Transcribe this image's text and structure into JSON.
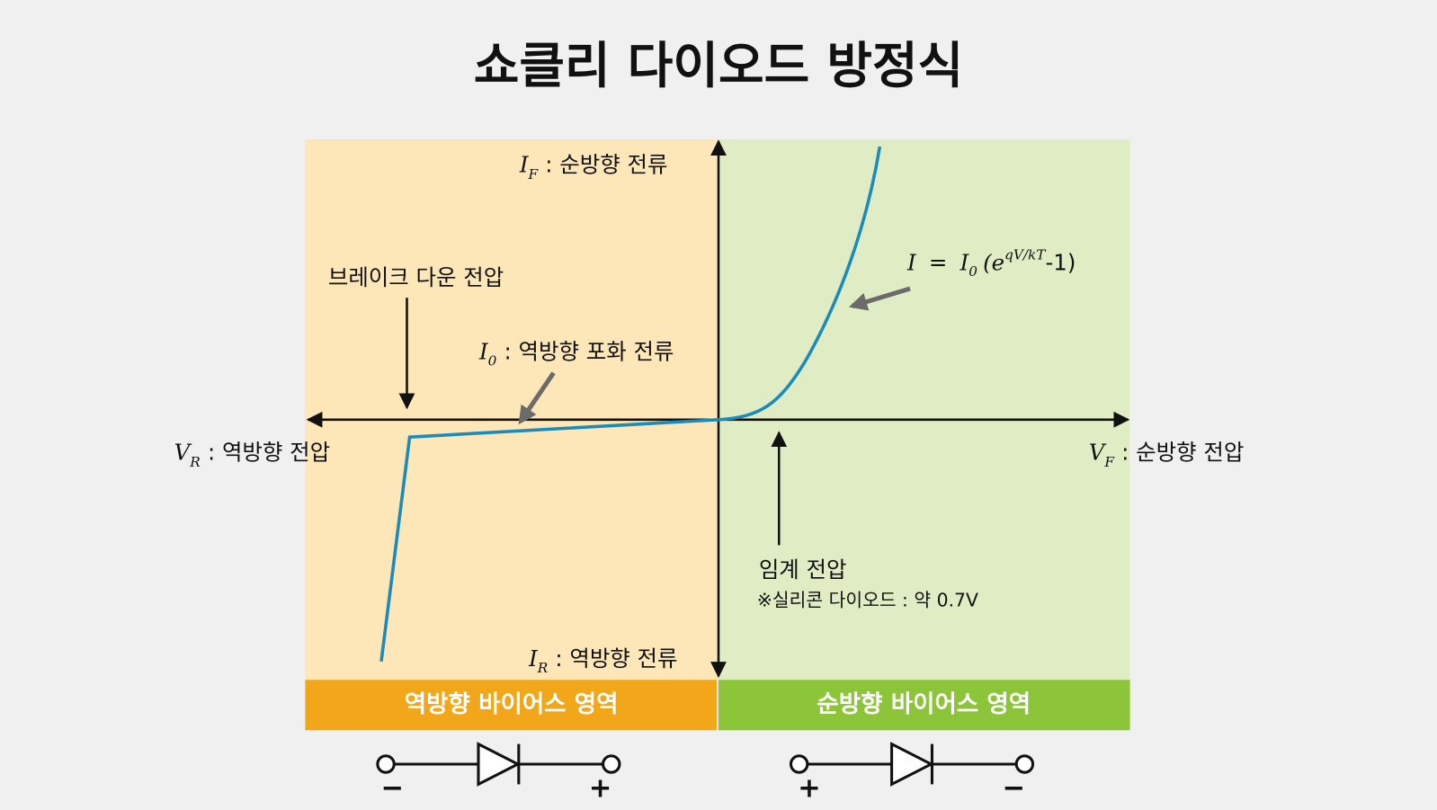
{
  "title": "쇼클리 다이오드 방정식",
  "labels": {
    "forward_current": {
      "symbol": "I",
      "subscript": "F",
      "text": ": 순방향 전류"
    },
    "reverse_current": {
      "symbol": "I",
      "subscript": "R",
      "text": ": 역방향 전류"
    },
    "reverse_voltage": {
      "symbol": "V",
      "subscript": "R",
      "text": ": 역방향 전압"
    },
    "forward_voltage": {
      "symbol": "V",
      "subscript": "F",
      "text": ": 순방향 전압"
    },
    "saturation_current": {
      "symbol": "I",
      "subscript": "0",
      "text": ": 역방향 포화 전류"
    },
    "breakdown_voltage": "브레이크 다운 전압",
    "threshold_voltage": "임계 전압",
    "threshold_note": "※실리콘 다이오드 : 약 0.7V",
    "equation": {
      "lhs": "I",
      "eq": "=",
      "i": "I",
      "i_sub": "0",
      "open": "(e",
      "exponent": "qV/kT",
      "close": "-1)"
    }
  },
  "regions": {
    "reverse": "역방향 바이어스 영역",
    "forward": "순방향 바이어스 영역"
  },
  "diodes": {
    "reverse": {
      "left": "−",
      "right": "+"
    },
    "forward": {
      "left": "+",
      "right": "−"
    }
  }
}
